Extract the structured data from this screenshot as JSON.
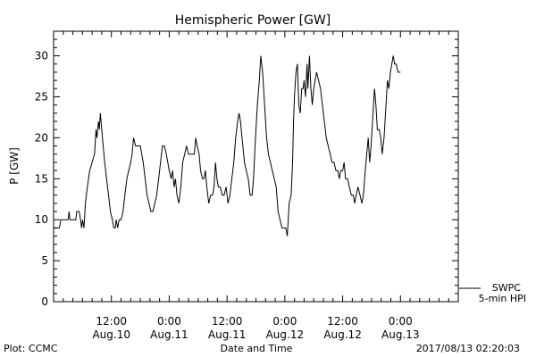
{
  "chart_data": {
    "type": "line",
    "title": "Hemispheric Power [GW]",
    "xlabel": "Date and Time",
    "ylabel": "P [GW]",
    "ylim": [
      0,
      33
    ],
    "xlim_hours": [
      0,
      84
    ],
    "y_ticks": [
      0,
      5,
      10,
      15,
      20,
      25,
      30
    ],
    "x_ticks": [
      {
        "hour": 12,
        "time": "12:00",
        "date": "Aug.10"
      },
      {
        "hour": 24,
        "time": "0:00",
        "date": "Aug.11"
      },
      {
        "hour": 36,
        "time": "12:00",
        "date": "Aug.11"
      },
      {
        "hour": 48,
        "time": "0:00",
        "date": "Aug.12"
      },
      {
        "hour": 60,
        "time": "12:00",
        "date": "Aug.12"
      },
      {
        "hour": 72,
        "time": "0:00",
        "date": "Aug.13"
      }
    ],
    "legend": {
      "placement": "bottom-right",
      "source": "SWPC",
      "series": "5-min HPI"
    },
    "grid": false,
    "series": [
      {
        "name": "5-min HPI",
        "color": "#000000",
        "points": [
          [
            0,
            9
          ],
          [
            1.2,
            9
          ],
          [
            1.5,
            10
          ],
          [
            2.4,
            10
          ],
          [
            3,
            10
          ],
          [
            3.2,
            11
          ],
          [
            3.4,
            10
          ],
          [
            4,
            10
          ],
          [
            4.6,
            10
          ],
          [
            4.8,
            11
          ],
          [
            5.3,
            11
          ],
          [
            5.6,
            10
          ],
          [
            5.8,
            9
          ],
          [
            6,
            10
          ],
          [
            6.3,
            9
          ],
          [
            6.6,
            12
          ],
          [
            7,
            14
          ],
          [
            7.5,
            16
          ],
          [
            8,
            17
          ],
          [
            8.5,
            18
          ],
          [
            8.8,
            21
          ],
          [
            9,
            20
          ],
          [
            9.3,
            22
          ],
          [
            9.5,
            21
          ],
          [
            9.7,
            23
          ],
          [
            10,
            21
          ],
          [
            10.3,
            19
          ],
          [
            10.6,
            17
          ],
          [
            11,
            15
          ],
          [
            11.4,
            13
          ],
          [
            11.8,
            11
          ],
          [
            12.2,
            10
          ],
          [
            12.5,
            9
          ],
          [
            12.8,
            9
          ],
          [
            13,
            10
          ],
          [
            13.3,
            9
          ],
          [
            13.6,
            10
          ],
          [
            14,
            10
          ],
          [
            14.4,
            11
          ],
          [
            14.8,
            13
          ],
          [
            15.2,
            15
          ],
          [
            15.6,
            16
          ],
          [
            16,
            17
          ],
          [
            16.3,
            18
          ],
          [
            16.6,
            20
          ],
          [
            17,
            19
          ],
          [
            17.5,
            19
          ],
          [
            18,
            19
          ],
          [
            18.3,
            18
          ],
          [
            18.6,
            17
          ],
          [
            19,
            15
          ],
          [
            19.4,
            13
          ],
          [
            19.8,
            12
          ],
          [
            20.2,
            11
          ],
          [
            20.6,
            11
          ],
          [
            21,
            12
          ],
          [
            21.4,
            13
          ],
          [
            21.8,
            15
          ],
          [
            22.2,
            17
          ],
          [
            22.6,
            19
          ],
          [
            23,
            19
          ],
          [
            23.4,
            18
          ],
          [
            23.7,
            17
          ],
          [
            24,
            16
          ],
          [
            24.4,
            15
          ],
          [
            24.7,
            16
          ],
          [
            25,
            14
          ],
          [
            25.3,
            15
          ],
          [
            25.6,
            13
          ],
          [
            26,
            12
          ],
          [
            26.4,
            14
          ],
          [
            26.8,
            17
          ],
          [
            27.2,
            18
          ],
          [
            27.6,
            19
          ],
          [
            28,
            18
          ],
          [
            28.4,
            18
          ],
          [
            28.8,
            18
          ],
          [
            29.2,
            18
          ],
          [
            29.5,
            20
          ],
          [
            29.8,
            19
          ],
          [
            30.2,
            18
          ],
          [
            30.5,
            16
          ],
          [
            30.9,
            15
          ],
          [
            31.2,
            15
          ],
          [
            31.5,
            16
          ],
          [
            31.8,
            14
          ],
          [
            32.2,
            12
          ],
          [
            32.6,
            13
          ],
          [
            33,
            13
          ],
          [
            33.3,
            14
          ],
          [
            33.6,
            17
          ],
          [
            33.9,
            15
          ],
          [
            34.2,
            14
          ],
          [
            34.6,
            14
          ],
          [
            35,
            13
          ],
          [
            35.4,
            13
          ],
          [
            35.8,
            14
          ],
          [
            36.2,
            12
          ],
          [
            36.6,
            13
          ],
          [
            37,
            15
          ],
          [
            37.4,
            17
          ],
          [
            37.8,
            20
          ],
          [
            38.2,
            22
          ],
          [
            38.5,
            23
          ],
          [
            38.8,
            22
          ],
          [
            39.1,
            20
          ],
          [
            39.3,
            19
          ],
          [
            39.6,
            17
          ],
          [
            40,
            16
          ],
          [
            40.4,
            15
          ],
          [
            40.8,
            13
          ],
          [
            41.2,
            13
          ],
          [
            41.5,
            15
          ],
          [
            41.9,
            20
          ],
          [
            42.3,
            24
          ],
          [
            42.7,
            27
          ],
          [
            43,
            30
          ],
          [
            43.4,
            28
          ],
          [
            43.8,
            24
          ],
          [
            44.2,
            20
          ],
          [
            44.6,
            18
          ],
          [
            45,
            17
          ],
          [
            45.4,
            16
          ],
          [
            45.8,
            15
          ],
          [
            46.2,
            14
          ],
          [
            46.6,
            11
          ],
          [
            47,
            10
          ],
          [
            47.4,
            9
          ],
          [
            47.8,
            9
          ],
          [
            48.2,
            9
          ],
          [
            48.5,
            8
          ],
          [
            48.9,
            12
          ],
          [
            49.3,
            13
          ],
          [
            49.6,
            17
          ],
          [
            49.8,
            22
          ],
          [
            50,
            25
          ],
          [
            50.3,
            28
          ],
          [
            50.6,
            29
          ],
          [
            50.9,
            24
          ],
          [
            51.2,
            23
          ],
          [
            51.5,
            26
          ],
          [
            51.8,
            26
          ],
          [
            52,
            27
          ],
          [
            52.3,
            25
          ],
          [
            52.6,
            29
          ],
          [
            52.8,
            26
          ],
          [
            53.1,
            30
          ],
          [
            53.4,
            26
          ],
          [
            53.7,
            24
          ],
          [
            54,
            26
          ],
          [
            54.3,
            27
          ],
          [
            54.6,
            28
          ],
          [
            55,
            27
          ],
          [
            55.4,
            26
          ],
          [
            55.8,
            24
          ],
          [
            56.2,
            22
          ],
          [
            56.6,
            20
          ],
          [
            57,
            19
          ],
          [
            57.4,
            18
          ],
          [
            57.8,
            17
          ],
          [
            58.2,
            17
          ],
          [
            58.6,
            16
          ],
          [
            59,
            16
          ],
          [
            59.3,
            15
          ],
          [
            59.6,
            16
          ],
          [
            60,
            16
          ],
          [
            60.3,
            17
          ],
          [
            60.6,
            15
          ],
          [
            61,
            15
          ],
          [
            61.4,
            14
          ],
          [
            61.8,
            13
          ],
          [
            62.2,
            13
          ],
          [
            62.5,
            12
          ],
          [
            62.8,
            13
          ],
          [
            63.2,
            14
          ],
          [
            63.6,
            13
          ],
          [
            64,
            12
          ],
          [
            64.3,
            13
          ],
          [
            64.7,
            16
          ],
          [
            65,
            18
          ],
          [
            65.3,
            20
          ],
          [
            65.6,
            17
          ],
          [
            65.9,
            19
          ],
          [
            66.2,
            22
          ],
          [
            66.6,
            26
          ],
          [
            66.9,
            24
          ],
          [
            67.2,
            21
          ],
          [
            67.6,
            21
          ],
          [
            67.9,
            20
          ],
          [
            68.2,
            18
          ],
          [
            68.6,
            20
          ],
          [
            69,
            24
          ],
          [
            69.3,
            27
          ],
          [
            69.6,
            26
          ],
          [
            69.9,
            28
          ],
          [
            70.2,
            29
          ],
          [
            70.5,
            30
          ],
          [
            70.8,
            29
          ],
          [
            71.1,
            29
          ],
          [
            71.5,
            28
          ],
          [
            72,
            28
          ]
        ]
      }
    ]
  },
  "footer": {
    "plot_label": "Plot: CCMC",
    "timestamp": "2017/08/13 02:20:03"
  }
}
